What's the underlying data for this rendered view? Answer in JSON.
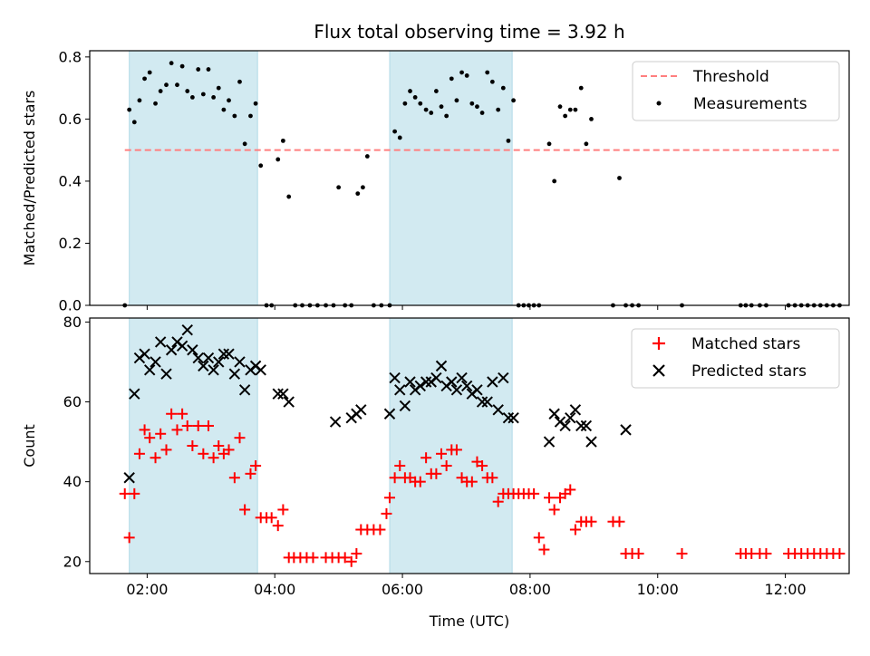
{
  "chart_data": [
    {
      "type": "scatter",
      "title": "Flux total observing time = 3.92 h",
      "xlabel": "",
      "ylabel": "Matched/Predicted stars",
      "xlim": [
        1.1,
        13.0
      ],
      "ylim": [
        0,
        0.82
      ],
      "yticks": [
        0.0,
        0.2,
        0.4,
        0.6,
        0.8
      ],
      "ytick_labels": [
        "0.0",
        "0.2",
        "0.4",
        "0.6",
        "0.8"
      ],
      "shaded_spans": [
        [
          1.72,
          3.73
        ],
        [
          5.8,
          7.72
        ]
      ],
      "shade_color": "#add8e6",
      "legend_position": "top-right",
      "threshold": {
        "name": "Threshold",
        "value": 0.5,
        "x_range": [
          1.65,
          12.85
        ],
        "color": "#ff7f7f",
        "style": "dashed"
      },
      "series": [
        {
          "name": "Measurements",
          "color": "#000000",
          "marker": "dot",
          "x": [
            1.65,
            1.72,
            1.8,
            1.88,
            1.96,
            2.04,
            2.13,
            2.21,
            2.3,
            2.38,
            2.47,
            2.55,
            2.63,
            2.71,
            2.8,
            2.88,
            2.96,
            3.04,
            3.12,
            3.2,
            3.28,
            3.37,
            3.45,
            3.53,
            3.62,
            3.7,
            3.78,
            3.87,
            3.95,
            4.05,
            4.13,
            4.22,
            4.32,
            4.43,
            4.55,
            4.67,
            4.8,
            4.92,
            5.0,
            5.1,
            5.2,
            5.3,
            5.38,
            5.45,
            5.55,
            5.67,
            5.8,
            5.88,
            5.96,
            6.04,
            6.12,
            6.2,
            6.28,
            6.37,
            6.45,
            6.53,
            6.61,
            6.69,
            6.77,
            6.85,
            6.93,
            7.01,
            7.09,
            7.17,
            7.25,
            7.33,
            7.41,
            7.5,
            7.58,
            7.66,
            7.74,
            7.82,
            7.9,
            7.98,
            8.06,
            8.14,
            8.3,
            8.38,
            8.47,
            8.55,
            8.63,
            8.71,
            8.8,
            8.88,
            8.96,
            9.3,
            9.4,
            9.5,
            9.6,
            9.7,
            10.38,
            11.3,
            11.38,
            11.47,
            11.6,
            11.7,
            12.05,
            12.15,
            12.25,
            12.35,
            12.45,
            12.55,
            12.65,
            12.75,
            12.85
          ],
          "y": [
            0.0,
            0.63,
            0.59,
            0.66,
            0.73,
            0.75,
            0.65,
            0.69,
            0.71,
            0.78,
            0.71,
            0.77,
            0.69,
            0.67,
            0.76,
            0.68,
            0.76,
            0.67,
            0.7,
            0.63,
            0.66,
            0.61,
            0.72,
            0.52,
            0.61,
            0.65,
            0.45,
            0.0,
            0.0,
            0.47,
            0.53,
            0.35,
            0.0,
            0.0,
            0.0,
            0.0,
            0.0,
            0.0,
            0.38,
            0.0,
            0.0,
            0.36,
            0.38,
            0.48,
            0.0,
            0.0,
            0.0,
            0.56,
            0.54,
            0.65,
            0.69,
            0.67,
            0.65,
            0.63,
            0.62,
            0.69,
            0.64,
            0.61,
            0.73,
            0.66,
            0.75,
            0.74,
            0.65,
            0.64,
            0.62,
            0.75,
            0.72,
            0.63,
            0.7,
            0.53,
            0.66,
            0.0,
            0.0,
            0.0,
            0.0,
            0.0,
            0.52,
            0.4,
            0.64,
            0.61,
            0.63,
            0.63,
            0.7,
            0.52,
            0.6,
            0.0,
            0.41,
            0.0,
            0.0,
            0.0,
            0.0,
            0.0,
            0.0,
            0.0,
            0.0,
            0.0,
            0.0,
            0.0,
            0.0,
            0.0,
            0.0,
            0.0,
            0.0,
            0.0,
            0.0
          ]
        }
      ]
    },
    {
      "type": "scatter",
      "title": "",
      "xlabel": "Time (UTC)",
      "ylabel": "Count",
      "xlim": [
        1.1,
        13.0
      ],
      "ylim": [
        17,
        81
      ],
      "xticks": [
        2,
        4,
        6,
        8,
        10,
        12
      ],
      "xtick_labels": [
        "02:00",
        "04:00",
        "06:00",
        "08:00",
        "10:00",
        "12:00"
      ],
      "yticks": [
        20,
        40,
        60,
        80
      ],
      "ytick_labels": [
        "20",
        "40",
        "60",
        "80"
      ],
      "shaded_spans": [
        [
          1.72,
          3.73
        ],
        [
          5.8,
          7.72
        ]
      ],
      "shade_color": "#add8e6",
      "legend_position": "top-right",
      "series": [
        {
          "name": "Matched stars",
          "color": "#ff0000",
          "marker": "plus",
          "x": [
            1.65,
            1.72,
            1.8,
            1.88,
            1.96,
            2.04,
            2.13,
            2.21,
            2.3,
            2.38,
            2.47,
            2.55,
            2.63,
            2.71,
            2.8,
            2.88,
            2.96,
            3.04,
            3.12,
            3.2,
            3.28,
            3.37,
            3.45,
            3.53,
            3.62,
            3.7,
            3.78,
            3.87,
            3.95,
            4.05,
            4.13,
            4.22,
            4.3,
            4.4,
            4.5,
            4.6,
            4.8,
            4.9,
            5.0,
            5.1,
            5.2,
            5.28,
            5.35,
            5.45,
            5.55,
            5.65,
            5.75,
            5.8,
            5.88,
            5.96,
            6.04,
            6.12,
            6.2,
            6.28,
            6.37,
            6.45,
            6.53,
            6.61,
            6.69,
            6.77,
            6.85,
            6.93,
            7.01,
            7.09,
            7.17,
            7.25,
            7.33,
            7.41,
            7.5,
            7.58,
            7.66,
            7.74,
            7.82,
            7.9,
            7.98,
            8.06,
            8.14,
            8.22,
            8.3,
            8.38,
            8.47,
            8.55,
            8.63,
            8.71,
            8.8,
            8.88,
            8.96,
            9.3,
            9.4,
            9.5,
            9.6,
            9.7,
            10.38,
            11.3,
            11.38,
            11.47,
            11.6,
            11.7,
            12.05,
            12.15,
            12.25,
            12.35,
            12.45,
            12.55,
            12.65,
            12.75,
            12.85
          ],
          "y": [
            37,
            26,
            37,
            47,
            53,
            51,
            46,
            52,
            48,
            57,
            53,
            57,
            54,
            49,
            54,
            47,
            54,
            46,
            49,
            47,
            48,
            41,
            51,
            33,
            42,
            44,
            31,
            31,
            31,
            29,
            33,
            21,
            21,
            21,
            21,
            21,
            21,
            21,
            21,
            21,
            20,
            22,
            28,
            28,
            28,
            28,
            32,
            36,
            41,
            44,
            41,
            41,
            40,
            40,
            46,
            42,
            42,
            47,
            44,
            48,
            48,
            41,
            40,
            40,
            45,
            44,
            41,
            41,
            35,
            37,
            37,
            37,
            37,
            37,
            37,
            37,
            26,
            23,
            36,
            33,
            36,
            37,
            38,
            28,
            30,
            30,
            30,
            30,
            30,
            22,
            22,
            22,
            22,
            22,
            22,
            22,
            22,
            22,
            22,
            22,
            22,
            22,
            22,
            22,
            22,
            22,
            22
          ]
        },
        {
          "name": "Predicted stars",
          "color": "#000000",
          "marker": "x",
          "x": [
            1.72,
            1.8,
            1.88,
            1.96,
            2.04,
            2.13,
            2.21,
            2.3,
            2.38,
            2.47,
            2.55,
            2.63,
            2.71,
            2.8,
            2.88,
            2.96,
            3.04,
            3.12,
            3.2,
            3.28,
            3.37,
            3.45,
            3.53,
            3.62,
            3.7,
            3.78,
            4.05,
            4.13,
            4.22,
            4.95,
            5.2,
            5.28,
            5.35,
            5.8,
            5.88,
            5.96,
            6.04,
            6.12,
            6.2,
            6.28,
            6.37,
            6.45,
            6.53,
            6.61,
            6.69,
            6.77,
            6.85,
            6.93,
            7.01,
            7.09,
            7.17,
            7.25,
            7.33,
            7.41,
            7.5,
            7.58,
            7.66,
            7.74,
            8.3,
            8.38,
            8.47,
            8.55,
            8.63,
            8.71,
            8.8,
            8.88,
            8.96,
            9.5
          ],
          "y": [
            41,
            62,
            71,
            72,
            68,
            70,
            75,
            67,
            73,
            75,
            74,
            78,
            73,
            71,
            69,
            71,
            68,
            70,
            72,
            72,
            67,
            70,
            63,
            68,
            69,
            68,
            62,
            62,
            60,
            55,
            56,
            57,
            58,
            57,
            66,
            63,
            59,
            65,
            63,
            64,
            65,
            65,
            66,
            69,
            64,
            65,
            63,
            66,
            64,
            62,
            63,
            60,
            60,
            65,
            58,
            66,
            56,
            56,
            50,
            57,
            55,
            54,
            56,
            58,
            54,
            54,
            50,
            53
          ]
        }
      ]
    }
  ]
}
